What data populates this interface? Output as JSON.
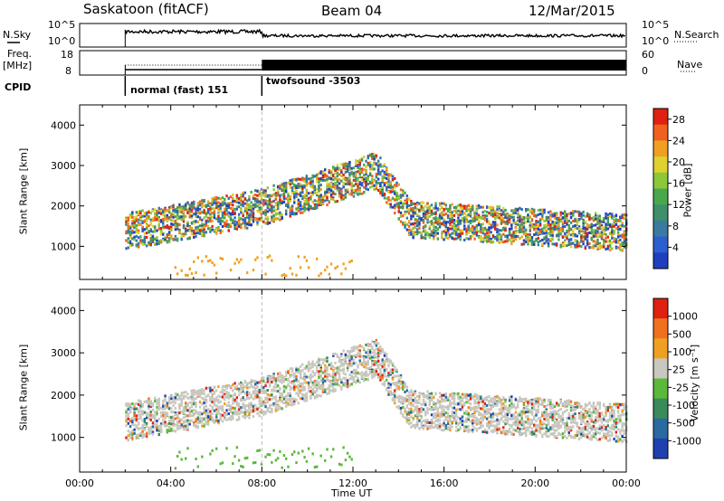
{
  "header": {
    "station": "Saskatoon (fitACF)",
    "beam": "Beam 04",
    "date": "12/Mar/2015"
  },
  "top_panels": {
    "nsky_label": "N.Sky",
    "nsearch_label": "N.Search",
    "freq_label": "Freq.",
    "freq_unit": "[MHz]",
    "nave_label": "Nave",
    "cpid_label": "CPID",
    "nsky_ticks": [
      "10^5",
      "10^0"
    ],
    "nsearch_ticks": [
      "10^5",
      "10^0"
    ],
    "freq_ticks": [
      "18",
      "8"
    ],
    "nave_ticks": [
      "60",
      "0"
    ],
    "cpid_segments": [
      {
        "start_hour": 2.0,
        "label": "normal (fast) 151"
      },
      {
        "start_hour": 8.0,
        "label": "twofsound -3503"
      }
    ]
  },
  "chart_data": [
    {
      "type": "heatmap",
      "name": "power-panel",
      "ylabel": "Slant Range [km]",
      "xlim": [
        0,
        24
      ],
      "ylim": [
        180,
        4500
      ],
      "yticks": [
        1000,
        2000,
        3000,
        4000
      ],
      "colorbar": {
        "label": "Power [dB]",
        "ticks": [
          4,
          8,
          12,
          16,
          20,
          24,
          28
        ],
        "range": [
          0,
          30
        ],
        "colors": [
          "#1f3fbf",
          "#2b5fd0",
          "#3a7aa0",
          "#3e8f6a",
          "#4aa84a",
          "#8cc83a",
          "#e0d030",
          "#f0a020",
          "#f06020",
          "#e02010"
        ]
      }
    },
    {
      "type": "heatmap",
      "name": "velocity-panel",
      "ylabel": "Slant Range [km]",
      "xlabel": "Time UT",
      "xlim": [
        0,
        24
      ],
      "ylim": [
        180,
        4500
      ],
      "yticks": [
        1000,
        2000,
        3000,
        4000
      ],
      "xtick_labels": [
        "00:00",
        "04:00",
        "08:00",
        "12:00",
        "16:00",
        "20:00",
        "00:00"
      ],
      "colorbar": {
        "label": "Velocity [m s⁻¹]",
        "ticks": [
          "1000",
          "500",
          "100",
          "25",
          "-25",
          "-100",
          "-500",
          "-1000"
        ],
        "colors": [
          "#2040b0",
          "#2a6aa0",
          "#3a8a5a",
          "#5ab83a",
          "#c8c8c0",
          "#f0a020",
          "#f07020",
          "#e02010"
        ]
      }
    }
  ]
}
